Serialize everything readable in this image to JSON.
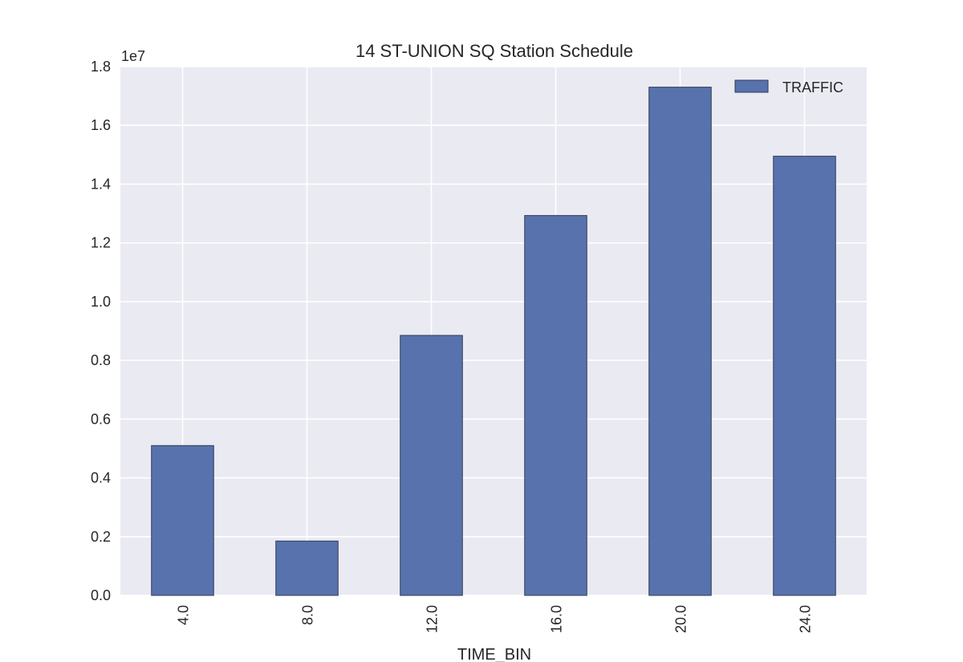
{
  "chart_data": {
    "type": "bar",
    "title": "14 ST-UNION SQ Station Schedule",
    "xlabel": "TIME_BIN",
    "ylabel": "",
    "y_offset_label": "1e7",
    "categories": [
      "4.0",
      "8.0",
      "12.0",
      "16.0",
      "20.0",
      "24.0"
    ],
    "series": [
      {
        "name": "TRAFFIC",
        "values": [
          5100000,
          1850000,
          8850000,
          12930000,
          17300000,
          14950000
        ]
      }
    ],
    "ylim": [
      0,
      18000000
    ],
    "y_ticks": [
      0,
      2000000,
      4000000,
      6000000,
      8000000,
      10000000,
      12000000,
      14000000,
      16000000,
      18000000
    ],
    "y_tick_labels": [
      "0.0",
      "0.2",
      "0.4",
      "0.6",
      "0.8",
      "1.0",
      "1.2",
      "1.4",
      "1.6",
      "1.8"
    ],
    "grid": true,
    "legend_position": "top-right",
    "colors": {
      "bar": "#5872ad",
      "bar_edge": "#2e3a55",
      "plot_bg": "#eaeaf2",
      "grid": "#ffffff"
    }
  }
}
